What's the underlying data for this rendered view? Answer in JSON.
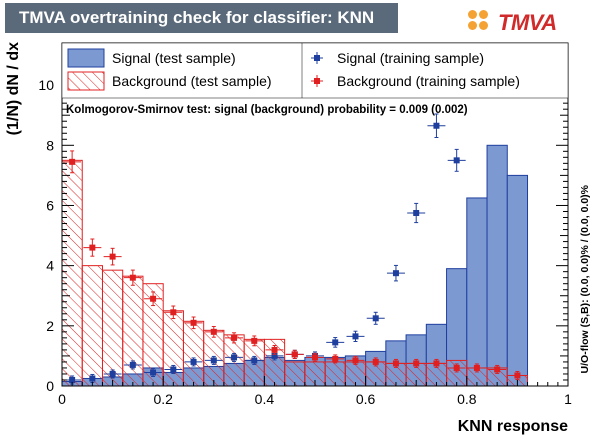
{
  "title": "TMVA overtraining check for classifier: KNN",
  "logo_text": "TMVA",
  "legend": {
    "signal_test": "Signal (test sample)",
    "background_test": "Background (test sample)",
    "signal_train": "Signal (training sample)",
    "background_train": "Background (training sample)"
  },
  "ks_text": "Kolmogorov-Smirnov test: signal (background) probability = 0.009 (0.002)",
  "overflow_text": "U/O-flow (S,B): (0.0, 0.0)% / (0.0, 0.0)%",
  "colors": {
    "signal_fill": "#7d99d1",
    "signal_line": "#1f3f9e",
    "background_line": "#e02020",
    "title_bg": "#5a6a7a"
  },
  "chart_data": {
    "type": "bar",
    "xlabel": "KNN response",
    "ylabel": "(1/N) dN / dx",
    "xlim": [
      0,
      1
    ],
    "ylim": [
      0,
      11.4
    ],
    "xticks": [
      "0",
      "0.2",
      "0.4",
      "0.6",
      "0.8",
      "1"
    ],
    "xtick_values": [
      0,
      0.2,
      0.4,
      0.6,
      0.8,
      1.0
    ],
    "yticks": [
      "0",
      "2",
      "4",
      "6",
      "8",
      "10"
    ],
    "ytick_values": [
      0,
      2,
      4,
      6,
      8,
      10
    ],
    "bin_edges": [
      0,
      0.04,
      0.08,
      0.12,
      0.16,
      0.2,
      0.24,
      0.28,
      0.32,
      0.36,
      0.4,
      0.44,
      0.48,
      0.52,
      0.56,
      0.6,
      0.64,
      0.68,
      0.72,
      0.76,
      0.8,
      0.84,
      0.88,
      0.92,
      0.96,
      1.0
    ],
    "series": [
      {
        "name": "Signal (test sample)",
        "kind": "hist",
        "values": [
          0.15,
          0.25,
          0.3,
          0.4,
          0.6,
          0.45,
          0.6,
          0.65,
          0.75,
          0.85,
          0.95,
          0.85,
          0.95,
          0.95,
          1.0,
          1.15,
          1.5,
          1.7,
          2.05,
          3.9,
          6.25,
          8.0,
          7.0,
          0,
          0
        ]
      },
      {
        "name": "Background (test sample)",
        "kind": "hist",
        "values": [
          7.5,
          4.0,
          3.85,
          3.65,
          3.4,
          2.5,
          2.15,
          1.85,
          1.7,
          1.55,
          1.55,
          0.8,
          0.8,
          0.8,
          0.8,
          0.8,
          0.75,
          0.75,
          0.75,
          0.85,
          0.6,
          0.6,
          0.35,
          0,
          0
        ]
      },
      {
        "name": "Signal (training sample)",
        "kind": "points",
        "values": [
          0.2,
          0.25,
          0.4,
          0.7,
          0.45,
          0.55,
          0.8,
          0.85,
          0.95,
          0.85,
          1.0,
          1.05,
          1.0,
          1.45,
          1.65,
          2.25,
          3.75,
          5.75,
          8.65,
          7.5,
          0,
          0,
          0,
          0,
          0
        ]
      },
      {
        "name": "Background (training sample)",
        "kind": "points",
        "values": [
          7.45,
          4.6,
          4.3,
          3.6,
          2.9,
          2.45,
          2.1,
          1.8,
          1.6,
          1.5,
          1.2,
          1.05,
          0.95,
          0.9,
          0.85,
          0.8,
          0.75,
          0.75,
          0.75,
          0.6,
          0.6,
          0.55,
          0.35,
          0,
          0
        ]
      }
    ]
  }
}
